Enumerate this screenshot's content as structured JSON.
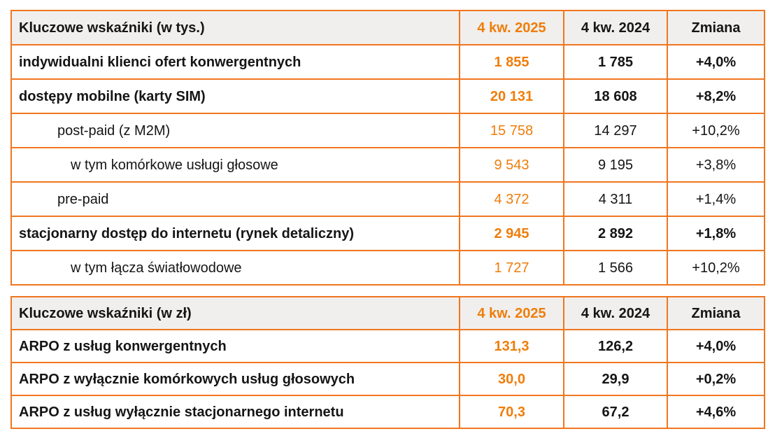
{
  "colors": {
    "orange_text": "#ef7d0a",
    "border_orange": "#f0761f",
    "header_background": "#f0efed",
    "body_text": "#151515"
  },
  "tables": [
    {
      "header": {
        "label": "Kluczowe wskaźniki (w tys.)",
        "col2025": "4 kw. 2025",
        "col2024": "4 kw. 2024",
        "change": "Zmiana"
      },
      "rows": [
        {
          "label": "indywidualni klienci ofert konwergentnych",
          "v2025": "1 855",
          "v2024": "1 785",
          "change": "+4,0%",
          "bold": true,
          "indent": 0
        },
        {
          "label": "dostępy mobilne (karty SIM)",
          "v2025": "20 131",
          "v2024": "18 608",
          "change": "+8,2%",
          "bold": true,
          "indent": 0
        },
        {
          "label": "post-paid (z M2M)",
          "v2025": "15 758",
          "v2024": "14 297",
          "change": "+10,2%",
          "bold": false,
          "indent": 1
        },
        {
          "label": "w tym komórkowe usługi głosowe",
          "v2025": "9 543",
          "v2024": "9 195",
          "change": "+3,8%",
          "bold": false,
          "indent": 2
        },
        {
          "label": "pre-paid",
          "v2025": "4 372",
          "v2024": "4 311",
          "change": "+1,4%",
          "bold": false,
          "indent": 1
        },
        {
          "label": "stacjonarny dostęp do internetu (rynek detaliczny)",
          "v2025": "2 945",
          "v2024": "2 892",
          "change": "+1,8%",
          "bold": true,
          "indent": 0
        },
        {
          "label": "w tym łącza światłowodowe",
          "v2025": "1 727",
          "v2024": "1 566",
          "change": "+10,2%",
          "bold": false,
          "indent": 2
        }
      ]
    },
    {
      "header": {
        "label": "Kluczowe wskaźniki (w zł)",
        "col2025": "4 kw. 2025",
        "col2024": "4 kw. 2024",
        "change": "Zmiana"
      },
      "rows": [
        {
          "label": "ARPO z usług konwergentnych",
          "v2025": "131,3",
          "v2024": "126,2",
          "change": "+4,0%",
          "bold": true,
          "indent": 0
        },
        {
          "label": "ARPO z wyłącznie komórkowych usług głosowych",
          "v2025": "30,0",
          "v2024": "29,9",
          "change": "+0,2%",
          "bold": true,
          "indent": 0
        },
        {
          "label": "ARPO z usług wyłącznie stacjonarnego internetu",
          "v2025": "70,3",
          "v2024": "67,2",
          "change": "+4,6%",
          "bold": true,
          "indent": 0
        }
      ]
    }
  ]
}
